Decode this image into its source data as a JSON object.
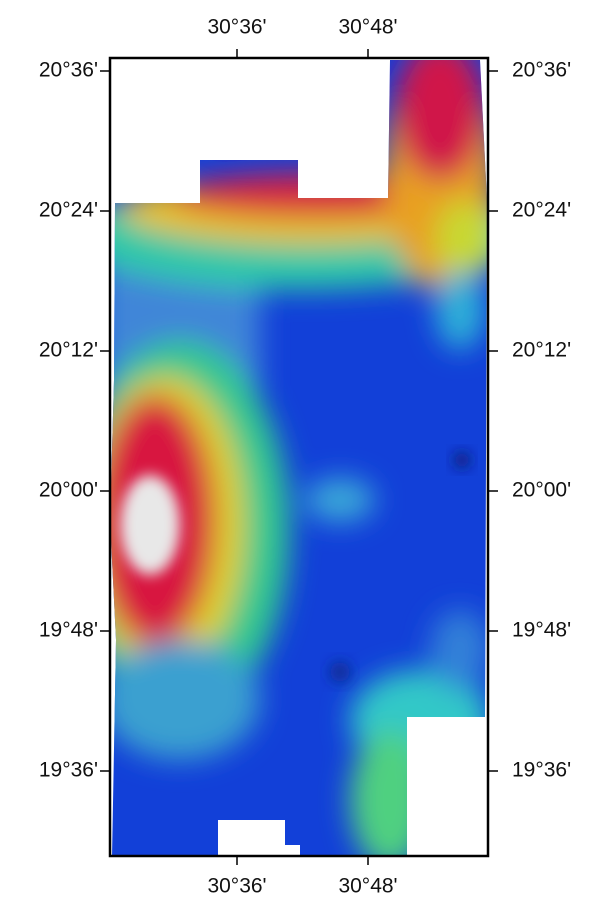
{
  "map": {
    "lon_ticks": [
      "30°36'",
      "30°48'"
    ],
    "lat_ticks": [
      "20°36'",
      "20°24'",
      "20°12'",
      "20°00'",
      "19°48'",
      "19°36'"
    ]
  }
}
